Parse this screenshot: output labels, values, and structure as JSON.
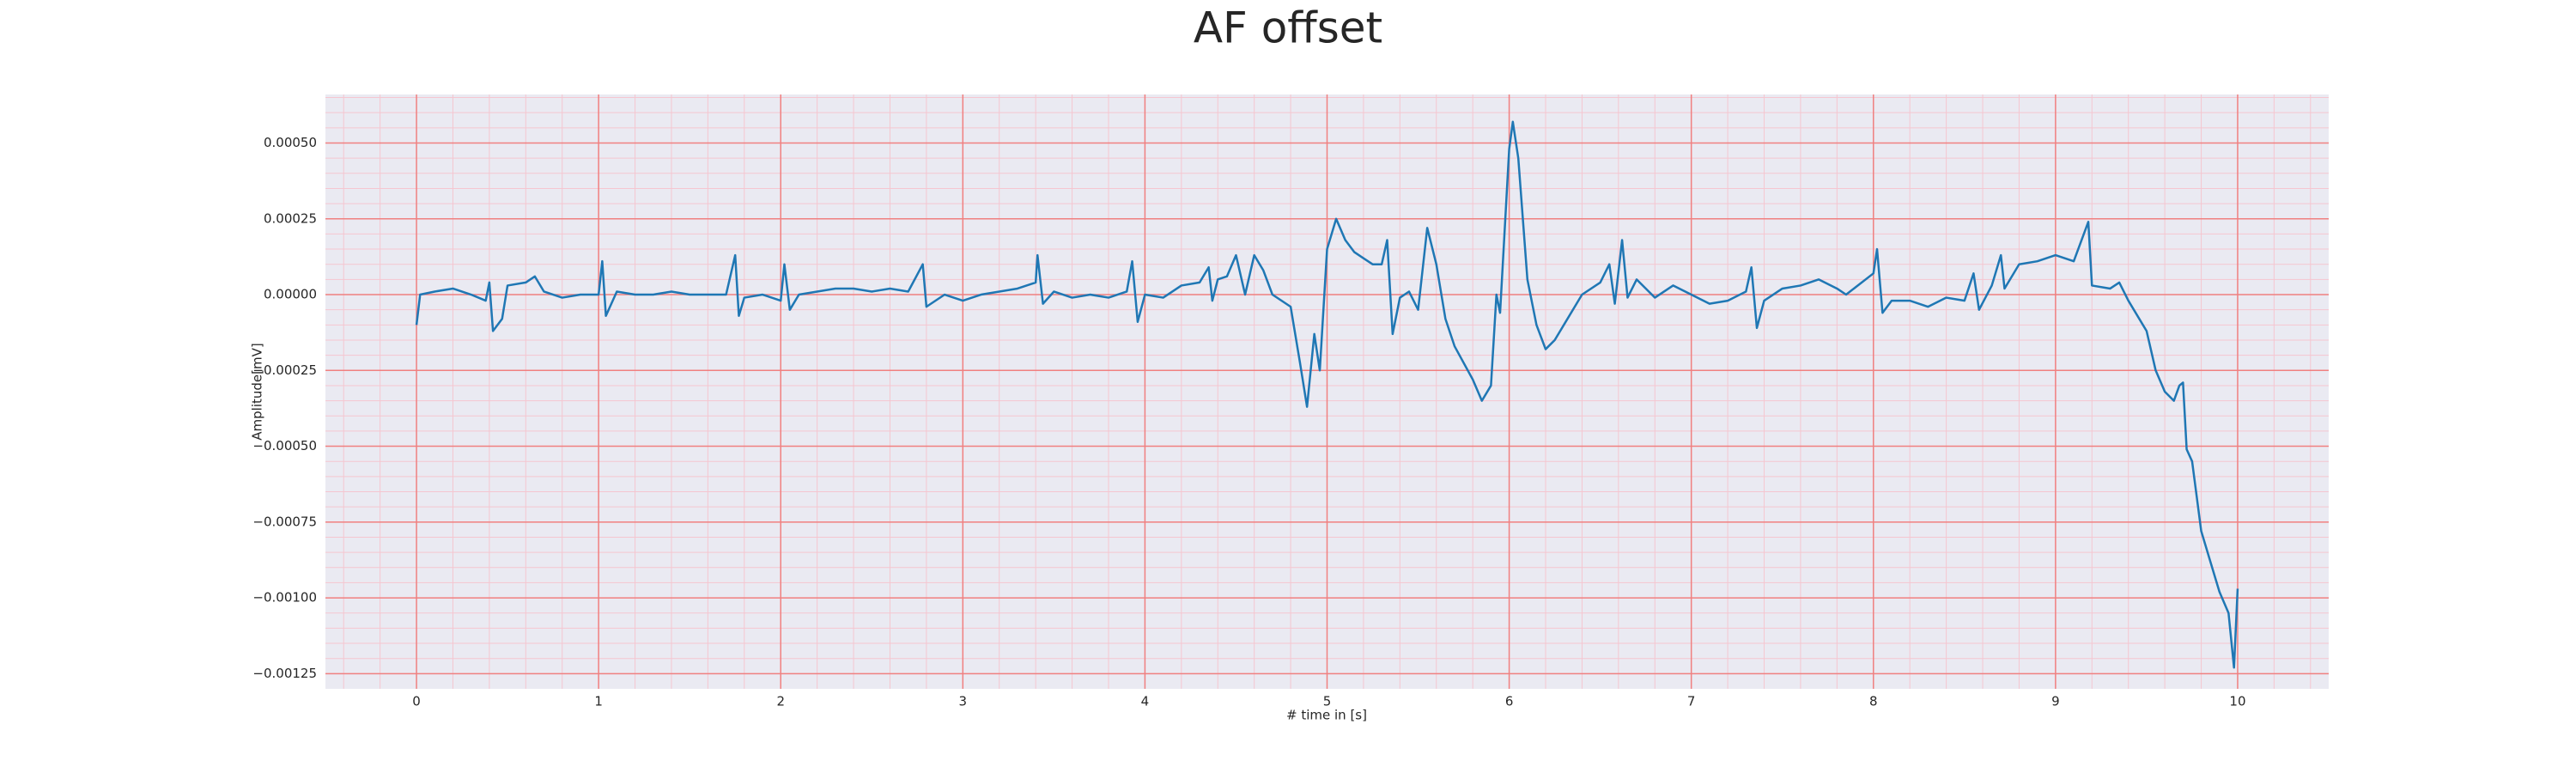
{
  "chart_data": {
    "type": "line",
    "title": "AF offset",
    "x_label": "# time in [s]",
    "y_label": "Amplitude[mV]",
    "xlim": [
      -0.5,
      10.5
    ],
    "ylim": [
      -0.0013,
      0.00066
    ],
    "xticks": [
      0,
      1,
      2,
      3,
      4,
      5,
      6,
      7,
      8,
      9,
      10
    ],
    "yticks": [
      {
        "value": 0.0005,
        "label": "0.00050"
      },
      {
        "value": 0.00025,
        "label": "0.00025"
      },
      {
        "value": 0,
        "label": "0.00000"
      },
      {
        "value": -0.00025,
        "label": "−0.00025"
      },
      {
        "value": -0.0005,
        "label": "−0.00050"
      },
      {
        "value": -0.00075,
        "label": "−0.00075"
      },
      {
        "value": -0.001,
        "label": "−0.00100"
      },
      {
        "value": -0.00125,
        "label": "−0.00125"
      }
    ],
    "grid": true,
    "grid_color": "#f08080",
    "minor_grid": true,
    "minor_grid_color": "#f5c6d0",
    "plot_background": "#eaeaf2",
    "series": [
      {
        "color": "#1f77b4",
        "x": [
          0.0,
          0.02,
          0.1,
          0.2,
          0.3,
          0.38,
          0.4,
          0.42,
          0.47,
          0.5,
          0.6,
          0.65,
          0.7,
          0.8,
          0.9,
          1.0,
          1.02,
          1.04,
          1.1,
          1.2,
          1.3,
          1.4,
          1.5,
          1.6,
          1.7,
          1.75,
          1.77,
          1.8,
          1.9,
          2.0,
          2.02,
          2.05,
          2.1,
          2.2,
          2.3,
          2.4,
          2.5,
          2.6,
          2.7,
          2.78,
          2.8,
          2.9,
          3.0,
          3.1,
          3.2,
          3.3,
          3.4,
          3.41,
          3.44,
          3.5,
          3.6,
          3.7,
          3.8,
          3.9,
          3.93,
          3.96,
          4.0,
          4.1,
          4.2,
          4.3,
          4.35,
          4.37,
          4.4,
          4.45,
          4.5,
          4.55,
          4.6,
          4.65,
          4.7,
          4.8,
          4.85,
          4.89,
          4.93,
          4.96,
          5.0,
          5.05,
          5.1,
          5.15,
          5.2,
          5.25,
          5.3,
          5.33,
          5.36,
          5.4,
          5.45,
          5.5,
          5.55,
          5.6,
          5.65,
          5.7,
          5.8,
          5.85,
          5.9,
          5.93,
          5.95,
          6.0,
          6.02,
          6.05,
          6.1,
          6.15,
          6.2,
          6.25,
          6.3,
          6.4,
          6.5,
          6.55,
          6.58,
          6.62,
          6.65,
          6.7,
          6.8,
          6.9,
          7.0,
          7.1,
          7.2,
          7.3,
          7.33,
          7.36,
          7.4,
          7.5,
          7.6,
          7.7,
          7.8,
          7.85,
          8.0,
          8.02,
          8.05,
          8.1,
          8.2,
          8.3,
          8.4,
          8.5,
          8.55,
          8.58,
          8.65,
          8.7,
          8.72,
          8.8,
          8.9,
          9.0,
          9.1,
          9.18,
          9.2,
          9.3,
          9.35,
          9.4,
          9.5,
          9.55,
          9.6,
          9.65,
          9.68,
          9.7,
          9.72,
          9.75,
          9.8,
          9.85,
          9.9,
          9.95,
          9.98,
          10.0
        ],
        "values": [
          -0.0001,
          0.0,
          1e-05,
          2e-05,
          0.0,
          -2e-05,
          4e-05,
          -0.00012,
          -8e-05,
          3e-05,
          4e-05,
          6e-05,
          1e-05,
          -1e-05,
          0.0,
          0.0,
          0.00011,
          -7e-05,
          1e-05,
          0.0,
          0.0,
          1e-05,
          0.0,
          0.0,
          0.0,
          0.00013,
          -7e-05,
          -1e-05,
          0.0,
          -2e-05,
          0.0001,
          -5e-05,
          0.0,
          1e-05,
          2e-05,
          2e-05,
          1e-05,
          2e-05,
          1e-05,
          0.0001,
          -4e-05,
          0.0,
          -2e-05,
          0.0,
          1e-05,
          2e-05,
          4e-05,
          0.00013,
          -3e-05,
          1e-05,
          -1e-05,
          0.0,
          -1e-05,
          1e-05,
          0.00011,
          -9e-05,
          0.0,
          -1e-05,
          3e-05,
          4e-05,
          9e-05,
          -2e-05,
          5e-05,
          6e-05,
          0.00013,
          0.0,
          0.00013,
          8e-05,
          0.0,
          -4e-05,
          -0.00022,
          -0.00037,
          -0.00013,
          -0.00025,
          0.00015,
          0.00025,
          0.00018,
          0.00014,
          0.00012,
          0.0001,
          0.0001,
          0.00018,
          -0.00013,
          -1e-05,
          1e-05,
          -5e-05,
          0.00022,
          0.0001,
          -8e-05,
          -0.00017,
          -0.00028,
          -0.00035,
          -0.0003,
          0.0,
          -6e-05,
          0.00048,
          0.00057,
          0.00045,
          5e-05,
          -0.0001,
          -0.00018,
          -0.00015,
          -0.0001,
          0.0,
          4e-05,
          0.0001,
          -3e-05,
          0.00018,
          -1e-05,
          5e-05,
          -1e-05,
          3e-05,
          0.0,
          -3e-05,
          -2e-05,
          1e-05,
          9e-05,
          -0.00011,
          -2e-05,
          2e-05,
          3e-05,
          5e-05,
          2e-05,
          0.0,
          7e-05,
          0.00015,
          -6e-05,
          -2e-05,
          -2e-05,
          -4e-05,
          -1e-05,
          -2e-05,
          7e-05,
          -5e-05,
          3e-05,
          0.00013,
          2e-05,
          0.0001,
          0.00011,
          0.00013,
          0.00011,
          0.00024,
          3e-05,
          2e-05,
          4e-05,
          -2e-05,
          -0.00012,
          -0.00025,
          -0.00032,
          -0.00035,
          -0.0003,
          -0.00029,
          -0.00051,
          -0.00055,
          -0.00078,
          -0.00088,
          -0.00098,
          -0.00105,
          -0.00123,
          -0.00097
        ]
      }
    ]
  }
}
